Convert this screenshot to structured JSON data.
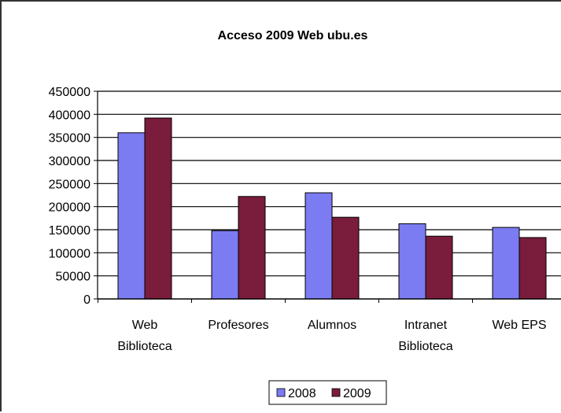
{
  "chart_data": {
    "type": "bar",
    "title": "Acceso 2009 Web ubu.es",
    "categories": [
      [
        "Web",
        "Biblioteca"
      ],
      [
        "Profesores"
      ],
      [
        "Alumnos"
      ],
      [
        "Intranet",
        "Biblioteca"
      ],
      [
        "Web EPS"
      ]
    ],
    "series": [
      {
        "name": "2008",
        "color": "#7b7bf2",
        "values": [
          360000,
          148000,
          230000,
          163000,
          155000
        ]
      },
      {
        "name": "2009",
        "color": "#7a1c3c",
        "values": [
          392000,
          222000,
          177000,
          136000,
          133000
        ]
      }
    ],
    "ylim": [
      0,
      450000
    ],
    "yticks": [
      "0",
      "50000",
      "100000",
      "150000",
      "200000",
      "250000",
      "300000",
      "350000",
      "400000",
      "450000"
    ],
    "grid": true,
    "legend": "bottom"
  }
}
